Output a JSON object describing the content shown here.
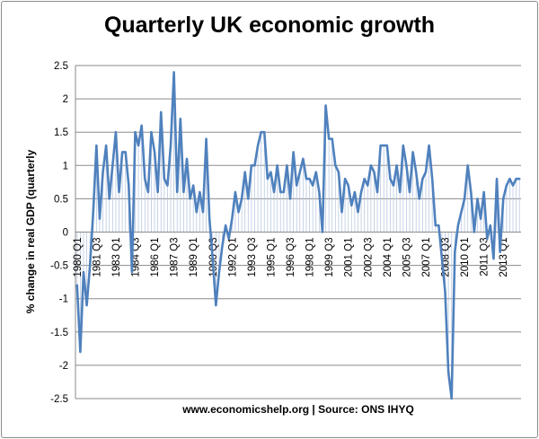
{
  "chart_data": {
    "type": "line",
    "title": "Quarterly UK economic growth",
    "ylabel": "% change in real GDP (quarterly",
    "xlabel": "www.economicshelp.org | Source: ONS IHYQ",
    "ylim": [
      -2.5,
      2.5
    ],
    "yticks": [
      "2.5",
      "2",
      "1.5",
      "1",
      "0.5",
      "0",
      "-0.5",
      "-1",
      "-1.5",
      "-2",
      "-2.5"
    ],
    "grid": true,
    "series": [
      {
        "name": "% change in real GDP (quarterly)",
        "color": "#4f81bd",
        "x": [
          "1980 Q1",
          "1980 Q2",
          "1980 Q3",
          "1980 Q4",
          "1981 Q1",
          "1981 Q2",
          "1981 Q3",
          "1981 Q4",
          "1982 Q1",
          "1982 Q2",
          "1982 Q3",
          "1982 Q4",
          "1983 Q1",
          "1983 Q2",
          "1983 Q3",
          "1983 Q4",
          "1984 Q1",
          "1984 Q2",
          "1984 Q3",
          "1984 Q4",
          "1985 Q1",
          "1985 Q2",
          "1985 Q3",
          "1985 Q4",
          "1986 Q1",
          "1986 Q2",
          "1986 Q3",
          "1986 Q4",
          "1987 Q1",
          "1987 Q2",
          "1987 Q3",
          "1987 Q4",
          "1988 Q1",
          "1988 Q2",
          "1988 Q3",
          "1988 Q4",
          "1989 Q1",
          "1989 Q2",
          "1989 Q3",
          "1989 Q4",
          "1990 Q1",
          "1990 Q2",
          "1990 Q3",
          "1990 Q4",
          "1991 Q1",
          "1991 Q2",
          "1991 Q3",
          "1991 Q4",
          "1992 Q1",
          "1992 Q2",
          "1992 Q3",
          "1992 Q4",
          "1993 Q1",
          "1993 Q2",
          "1993 Q3",
          "1993 Q4",
          "1994 Q1",
          "1994 Q2",
          "1994 Q3",
          "1994 Q4",
          "1995 Q1",
          "1995 Q2",
          "1995 Q3",
          "1995 Q4",
          "1996 Q1",
          "1996 Q2",
          "1996 Q3",
          "1996 Q4",
          "1997 Q1",
          "1997 Q2",
          "1997 Q3",
          "1997 Q4",
          "1998 Q1",
          "1998 Q2",
          "1998 Q3",
          "1998 Q4",
          "1999 Q1",
          "1999 Q2",
          "1999 Q3",
          "1999 Q4",
          "2000 Q1",
          "2000 Q2",
          "2000 Q3",
          "2000 Q4",
          "2001 Q1",
          "2001 Q2",
          "2001 Q3",
          "2001 Q4",
          "2002 Q1",
          "2002 Q2",
          "2002 Q3",
          "2002 Q4",
          "2003 Q1",
          "2003 Q2",
          "2003 Q3",
          "2003 Q4",
          "2004 Q1",
          "2004 Q2",
          "2004 Q3",
          "2004 Q4",
          "2005 Q1",
          "2005 Q2",
          "2005 Q3",
          "2005 Q4",
          "2006 Q1",
          "2006 Q2",
          "2006 Q3",
          "2006 Q4",
          "2007 Q1",
          "2007 Q2",
          "2007 Q3",
          "2007 Q4",
          "2008 Q1",
          "2008 Q2",
          "2008 Q3",
          "2008 Q4",
          "2009 Q1",
          "2009 Q2",
          "2009 Q3",
          "2009 Q4",
          "2010 Q1",
          "2010 Q2",
          "2010 Q3",
          "2010 Q4",
          "2011 Q1",
          "2011 Q2",
          "2011 Q3",
          "2011 Q4",
          "2012 Q1",
          "2012 Q2",
          "2012 Q3",
          "2012 Q4",
          "2013 Q1",
          "2013 Q2",
          "2013 Q3",
          "2013 Q4",
          "2014 Q1",
          "2014 Q2"
        ],
        "values": [
          -0.8,
          -1.8,
          -0.6,
          -1.1,
          -0.5,
          0.3,
          1.3,
          0.2,
          0.9,
          1.3,
          0.5,
          1.0,
          1.5,
          0.6,
          1.2,
          1.2,
          0.7,
          -0.6,
          1.5,
          1.3,
          1.6,
          0.8,
          0.6,
          1.5,
          1.2,
          0.6,
          1.8,
          0.8,
          0.7,
          1.3,
          2.4,
          0.6,
          1.7,
          0.6,
          1.1,
          0.5,
          0.7,
          0.3,
          0.6,
          0.3,
          1.4,
          0.2,
          -0.4,
          -1.1,
          -0.6,
          -0.2,
          0.1,
          -0.1,
          0.2,
          0.6,
          0.3,
          0.5,
          0.9,
          0.5,
          1.0,
          1.0,
          1.3,
          1.5,
          1.5,
          0.8,
          0.9,
          0.6,
          1.0,
          0.6,
          0.6,
          1.0,
          0.5,
          1.2,
          0.7,
          0.9,
          1.1,
          0.8,
          0.8,
          0.7,
          0.9,
          0.6,
          0.0,
          1.9,
          1.4,
          1.4,
          1.0,
          0.9,
          0.3,
          0.8,
          0.7,
          0.4,
          0.6,
          0.3,
          0.6,
          0.8,
          0.7,
          1.0,
          0.9,
          0.6,
          1.3,
          1.3,
          1.3,
          0.8,
          0.7,
          1.0,
          0.6,
          1.3,
          1.0,
          0.6,
          1.2,
          0.9,
          0.5,
          0.8,
          0.9,
          1.3,
          0.8,
          0.1,
          0.1,
          -0.4,
          -0.9,
          -2.1,
          -2.5,
          -0.3,
          0.1,
          0.3,
          0.5,
          1.0,
          0.6,
          0.0,
          0.5,
          0.2,
          0.6,
          -0.1,
          0.1,
          -0.4,
          0.8,
          -0.3,
          0.5,
          0.7,
          0.8,
          0.7,
          0.8,
          0.8
        ]
      }
    ],
    "xtick_labels": [
      "1980 Q1",
      "1981 Q3",
      "1983 Q1",
      "1984 Q3",
      "1986 Q1",
      "1987 Q3",
      "1989 Q1",
      "1990 Q3",
      "1992 Q1",
      "1993 Q3",
      "1995 Q1",
      "1996 Q3",
      "1998 Q1",
      "1999 Q3",
      "2001 Q1",
      "2002 Q3",
      "2004 Q1",
      "2005 Q3",
      "2007 Q1",
      "2008 Q3",
      "2010 Q1",
      "2011 Q3",
      "2013 Q1"
    ]
  }
}
